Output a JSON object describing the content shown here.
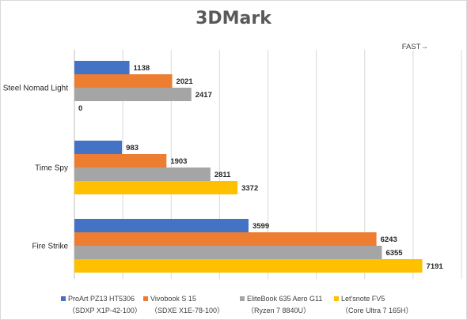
{
  "chart_data": {
    "type": "bar",
    "orientation": "horizontal",
    "title": "3DMark",
    "annotation": "FAST→",
    "categories": [
      "Steel Nomad Light",
      "Time Spy",
      "Fire Strike"
    ],
    "series": [
      {
        "name": "ProArt PZ13 HT5306",
        "name_sub": "（SDXP X1P-42-100）",
        "color": "#4472c4",
        "values": [
          1138,
          983,
          3599
        ]
      },
      {
        "name": "Vivobook S 15",
        "name_sub": "（SDXE X1E-78-100）",
        "color": "#ed7d31",
        "values": [
          2021,
          1903,
          6243
        ]
      },
      {
        "name": "EliteBook 635 Aero G11",
        "name_sub": "（Ryzen 7 8840U）",
        "color": "#a5a5a5",
        "values": [
          2417,
          2811,
          6355
        ]
      },
      {
        "name": "Let'snote FV5",
        "name_sub": "（Core Ultra 7 165H）",
        "color": "#ffc000",
        "values": [
          0,
          3372,
          7191
        ]
      }
    ],
    "xlim": [
      0,
      8000
    ],
    "grid": true,
    "legend": "bottom"
  }
}
